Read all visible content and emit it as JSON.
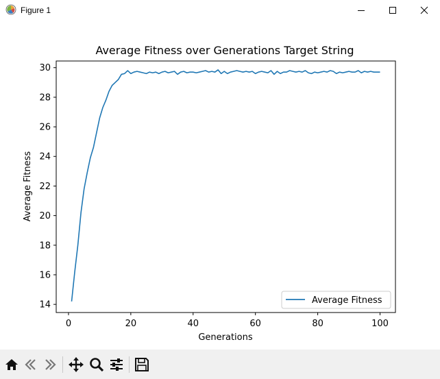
{
  "window": {
    "title": "Figure 1",
    "icons": {
      "app": "matplotlib-figure-icon",
      "minimize": "minimize-icon",
      "maximize": "maximize-icon",
      "close": "close-icon"
    }
  },
  "toolbar": {
    "buttons": [
      {
        "name": "home-icon",
        "label": "Home"
      },
      {
        "name": "back-arrow-icon",
        "label": "Back"
      },
      {
        "name": "forward-arrow-icon",
        "label": "Forward"
      },
      {
        "name": "pan-move-icon",
        "label": "Pan"
      },
      {
        "name": "zoom-magnifier-icon",
        "label": "Zoom"
      },
      {
        "name": "configure-subplots-icon",
        "label": "Subplots"
      },
      {
        "name": "save-floppy-icon",
        "label": "Save"
      }
    ]
  },
  "chart_data": {
    "type": "line",
    "title": "Average Fitness over Generations Target String",
    "xlabel": "Generations",
    "ylabel": "Average Fitness",
    "xlim": [
      -3.95,
      104.95
    ],
    "ylim": [
      13.45,
      30.45
    ],
    "xticks": [
      0,
      20,
      40,
      60,
      80,
      100
    ],
    "yticks": [
      14,
      16,
      18,
      20,
      22,
      24,
      26,
      28,
      30
    ],
    "grid": false,
    "legend_position": "lower-right",
    "series": [
      {
        "name": "Average Fitness",
        "color": "#1f77b4",
        "x": [
          1,
          2,
          3,
          4,
          5,
          6,
          7,
          8,
          9,
          10,
          11,
          12,
          13,
          14,
          15,
          16,
          17,
          18,
          19,
          20,
          21,
          22,
          23,
          24,
          25,
          26,
          27,
          28,
          29,
          30,
          31,
          32,
          33,
          34,
          35,
          36,
          37,
          38,
          39,
          40,
          41,
          42,
          43,
          44,
          45,
          46,
          47,
          48,
          49,
          50,
          51,
          52,
          53,
          54,
          55,
          56,
          57,
          58,
          59,
          60,
          61,
          62,
          63,
          64,
          65,
          66,
          67,
          68,
          69,
          70,
          71,
          72,
          73,
          74,
          75,
          76,
          77,
          78,
          79,
          80,
          81,
          82,
          83,
          84,
          85,
          86,
          87,
          88,
          89,
          90,
          91,
          92,
          93,
          94,
          95,
          96,
          97,
          98,
          99,
          100
        ],
        "values": [
          14.2,
          16.2,
          18.0,
          20.2,
          21.8,
          22.9,
          23.9,
          24.6,
          25.6,
          26.6,
          27.3,
          27.8,
          28.4,
          28.8,
          29.0,
          29.2,
          29.55,
          29.6,
          29.8,
          29.6,
          29.7,
          29.75,
          29.7,
          29.65,
          29.6,
          29.7,
          29.65,
          29.7,
          29.6,
          29.7,
          29.75,
          29.65,
          29.7,
          29.75,
          29.55,
          29.7,
          29.75,
          29.65,
          29.7,
          29.7,
          29.65,
          29.7,
          29.75,
          29.8,
          29.7,
          29.75,
          29.7,
          29.85,
          29.6,
          29.75,
          29.6,
          29.7,
          29.75,
          29.8,
          29.75,
          29.7,
          29.75,
          29.7,
          29.75,
          29.6,
          29.7,
          29.75,
          29.7,
          29.65,
          29.8,
          29.55,
          29.75,
          29.6,
          29.7,
          29.7,
          29.8,
          29.75,
          29.7,
          29.75,
          29.7,
          29.8,
          29.65,
          29.6,
          29.7,
          29.65,
          29.7,
          29.75,
          29.7,
          29.8,
          29.75,
          29.6,
          29.7,
          29.65,
          29.7,
          29.75,
          29.7,
          29.7,
          29.8,
          29.65,
          29.75,
          29.7,
          29.75,
          29.7,
          29.7,
          29.7
        ]
      }
    ]
  }
}
